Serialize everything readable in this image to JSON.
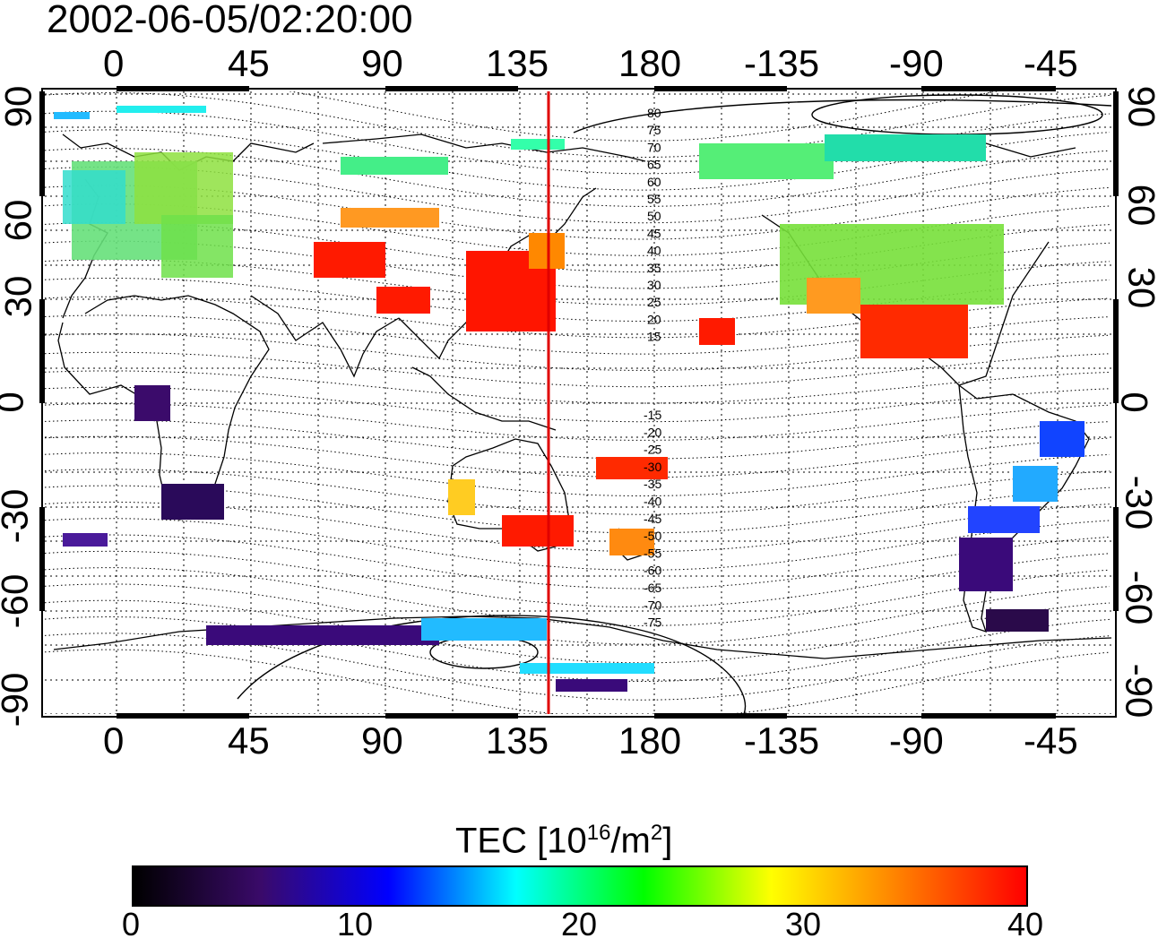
{
  "title": "2002-06-05/02:20:00",
  "top_lon_labels": [
    "0",
    "45",
    "90",
    "135",
    "180",
    "-135",
    "-90",
    "-45"
  ],
  "bottom_lon_labels": [
    "0",
    "45",
    "90",
    "135",
    "180",
    "-135",
    "-90",
    "-45"
  ],
  "left_lat_labels": [
    "90",
    "60",
    "30",
    "0",
    "-30",
    "-60",
    "-90"
  ],
  "right_lat_labels": [
    "90",
    "60",
    "30",
    "0",
    "-30",
    "-60",
    "-90"
  ],
  "contour_labels_north": [
    "80",
    "75",
    "70",
    "65",
    "60",
    "55",
    "50",
    "45",
    "40",
    "35",
    "30",
    "25",
    "20",
    "15"
  ],
  "contour_labels_south": [
    "-15",
    "-20",
    "-25",
    "-30",
    "-35",
    "-40",
    "-45",
    "-50",
    "-55",
    "-60",
    "-65",
    "-70",
    "-75"
  ],
  "colorbar": {
    "title_prefix": "TEC  [10",
    "title_exp1": "16",
    "title_mid": "/m",
    "title_exp2": "2",
    "title_suffix": "]",
    "ticks": [
      "0",
      "10",
      "20",
      "30",
      "40"
    ],
    "colors": [
      "#000000",
      "#3a0a6a",
      "#0000ff",
      "#00ffff",
      "#00ff00",
      "#ffff00",
      "#ff8000",
      "#ff0000"
    ]
  },
  "meridian_line_color": "#e00000",
  "meridian_line_lon": 145,
  "map_data": {
    "lon_range": [
      -25,
      340
    ],
    "lat_range": [
      -90,
      90
    ],
    "grid": true
  }
}
